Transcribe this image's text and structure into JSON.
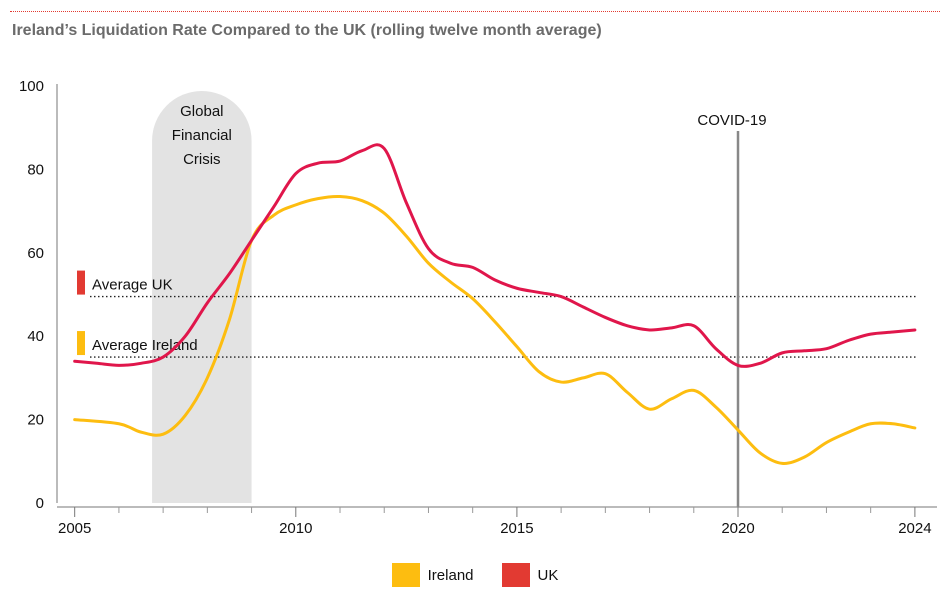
{
  "chart_data": {
    "type": "line",
    "title": "Ireland’s Liquidation Rate Compared to the UK (rolling twelve month average)",
    "xlabel": "",
    "ylabel": "",
    "xlim": [
      2004.6,
      2024.5
    ],
    "ylim": [
      0,
      100
    ],
    "y_ticks": [
      0,
      20,
      40,
      60,
      80,
      100
    ],
    "x_ticks": [
      2005,
      2010,
      2015,
      2020,
      2024
    ],
    "x_minor_ticks": [
      2006,
      2007,
      2008,
      2009,
      2011,
      2012,
      2013,
      2014,
      2016,
      2017,
      2018,
      2019,
      2021,
      2022,
      2023
    ],
    "legend_position": "bottom-center",
    "series": [
      {
        "name": "Ireland",
        "color": "#fdbd10",
        "x": [
          2005,
          2006,
          2006.5,
          2007,
          2007.5,
          2008,
          2008.5,
          2009,
          2009.5,
          2010,
          2010.5,
          2011,
          2011.5,
          2012,
          2012.5,
          2013,
          2013.5,
          2014,
          2014.5,
          2015,
          2015.5,
          2016,
          2016.5,
          2017,
          2017.5,
          2018,
          2018.5,
          2019,
          2019.5,
          2020,
          2020.5,
          2021,
          2021.5,
          2022,
          2022.5,
          2023,
          2023.5,
          2024
        ],
        "values": [
          20,
          19,
          17,
          16.5,
          21,
          30,
          44,
          63,
          69,
          71.5,
          73,
          73.5,
          72.5,
          69.5,
          64,
          57.5,
          53,
          49,
          43.5,
          37.5,
          31.5,
          29,
          30,
          31,
          26.5,
          22.5,
          25,
          27,
          23,
          17.5,
          12,
          9.5,
          11,
          14.5,
          17,
          19,
          19,
          18
        ]
      },
      {
        "name": "UK",
        "color": "#e0164b",
        "x": [
          2005,
          2005.5,
          2006,
          2006.5,
          2007,
          2007.5,
          2008,
          2008.5,
          2009,
          2009.5,
          2010,
          2010.5,
          2011,
          2011.5,
          2012,
          2012.5,
          2013,
          2013.5,
          2014,
          2014.5,
          2015,
          2015.5,
          2016,
          2016.5,
          2017,
          2017.5,
          2018,
          2018.5,
          2019,
          2019.5,
          2020,
          2020.5,
          2021,
          2021.5,
          2022,
          2022.5,
          2023,
          2023.5,
          2024
        ],
        "values": [
          34,
          33.5,
          33,
          33.5,
          35,
          40,
          48,
          55,
          63,
          71,
          79,
          81.5,
          82,
          84.5,
          85,
          72,
          61,
          57.5,
          56.5,
          53.5,
          51.5,
          50.5,
          49.5,
          47,
          44.5,
          42.5,
          41.5,
          42,
          42.5,
          37,
          33,
          33.5,
          36,
          36.5,
          37,
          39,
          40.5,
          41,
          41.5
        ]
      }
    ],
    "reference_lines": [
      {
        "label": "Average UK",
        "value": 49.5,
        "color": "#e23a32"
      },
      {
        "label": "Average Ireland",
        "value": 35,
        "color": "#fdbd10"
      }
    ],
    "shaded_regions": [
      {
        "label_lines": [
          "Global",
          "Financial",
          "Crisis"
        ],
        "x_start": 2006.75,
        "x_end": 2009
      }
    ],
    "vertical_markers": [
      {
        "label": "COVID-19",
        "x": 2020
      }
    ]
  }
}
